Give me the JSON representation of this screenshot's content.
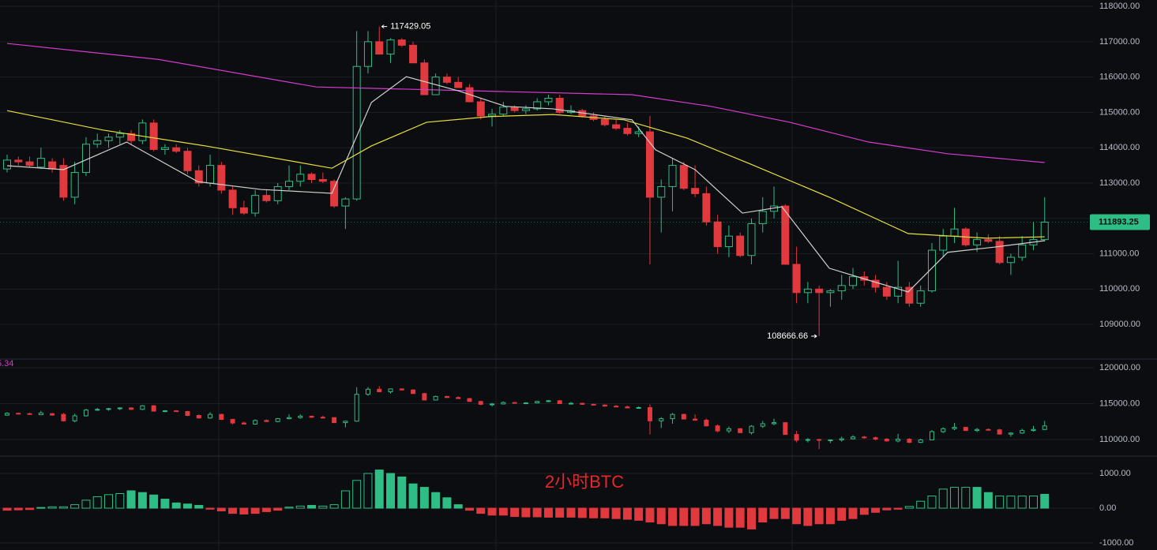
{
  "chart_data": [
    {
      "type": "candlestick",
      "ylim": [
        108020,
        118180
      ],
      "yticks": [
        {
          "value": 118000,
          "label": "118000.00"
        },
        {
          "value": 117000,
          "label": "117000.00"
        },
        {
          "value": 116000,
          "label": "116000.00"
        },
        {
          "value": 115000,
          "label": "115000.00"
        },
        {
          "value": 114000,
          "label": "114000.00"
        },
        {
          "value": 113000,
          "label": "113000.00"
        },
        {
          "value": 112000,
          "label": "112000.00"
        },
        {
          "value": 111000,
          "label": "111000.00"
        },
        {
          "value": 110000,
          "label": "110000.00"
        },
        {
          "value": 109000,
          "label": "109000.00"
        }
      ],
      "up_color": "#2ebd85",
      "down_color": "#e0393e",
      "high_annotation": 117429.05,
      "low_annotation": 108666.66,
      "last_price": 111893.25,
      "candles": [
        [
          113400,
          113800,
          113300,
          113650
        ],
        [
          113650,
          113750,
          113500,
          113600
        ],
        [
          113600,
          113750,
          113450,
          113500
        ],
        [
          113450,
          114000,
          113400,
          113700
        ],
        [
          113600,
          113700,
          113300,
          113400
        ],
        [
          113500,
          113700,
          112500,
          112600
        ],
        [
          112600,
          113600,
          112400,
          113300
        ],
        [
          113300,
          114300,
          113200,
          114100
        ],
        [
          114100,
          114400,
          114000,
          114200
        ],
        [
          114200,
          114400,
          114000,
          114300
        ],
        [
          114300,
          114500,
          114100,
          114400
        ],
        [
          114400,
          114500,
          114100,
          114200
        ],
        [
          114200,
          114800,
          114100,
          114700
        ],
        [
          114700,
          114800,
          113900,
          113950
        ],
        [
          113950,
          114100,
          113800,
          114000
        ],
        [
          114000,
          114100,
          113850,
          113900
        ],
        [
          113900,
          114000,
          113250,
          113350
        ],
        [
          113350,
          113500,
          112900,
          113000
        ],
        [
          113000,
          113800,
          112900,
          113500
        ],
        [
          113500,
          113600,
          112700,
          112800
        ],
        [
          112800,
          112900,
          112100,
          112300
        ],
        [
          112300,
          112500,
          112100,
          112150
        ],
        [
          112150,
          112800,
          112050,
          112650
        ],
        [
          112650,
          112800,
          112450,
          112500
        ],
        [
          112500,
          113000,
          112400,
          112900
        ],
        [
          112900,
          113500,
          112800,
          113050
        ],
        [
          113050,
          113500,
          112900,
          113250
        ],
        [
          113250,
          113300,
          113000,
          113100
        ],
        [
          113100,
          113300,
          113000,
          113050
        ],
        [
          113050,
          113100,
          112300,
          112350
        ],
        [
          112350,
          112600,
          111700,
          112550
        ],
        [
          112550,
          117300,
          112500,
          116300
        ],
        [
          116300,
          117300,
          116100,
          117000
        ],
        [
          117000,
          117429.05,
          116700,
          116650
        ],
        [
          116650,
          117100,
          116400,
          117050
        ],
        [
          117050,
          117100,
          116850,
          116900
        ],
        [
          116900,
          117000,
          116400,
          116400
        ],
        [
          116400,
          116500,
          115500,
          115500
        ],
        [
          115500,
          116100,
          115500,
          116000
        ],
        [
          116000,
          116100,
          115800,
          115850
        ],
        [
          115850,
          116000,
          115700,
          115700
        ],
        [
          115700,
          115800,
          115300,
          115300
        ],
        [
          115300,
          115400,
          114800,
          114900
        ],
        [
          114900,
          115100,
          114600,
          114950
        ],
        [
          114950,
          115300,
          114900,
          115150
        ],
        [
          115150,
          115200,
          115000,
          115050
        ],
        [
          115050,
          115200,
          114950,
          115100
        ],
        [
          115100,
          115400,
          115050,
          115300
        ],
        [
          115300,
          115500,
          115200,
          115400
        ],
        [
          115400,
          115500,
          114950,
          115000
        ],
        [
          115000,
          115200,
          114950,
          115050
        ],
        [
          115050,
          115100,
          114850,
          114900
        ],
        [
          114900,
          115000,
          114750,
          114800
        ],
        [
          114800,
          114900,
          114600,
          114650
        ],
        [
          114650,
          114800,
          114500,
          114550
        ],
        [
          114550,
          114700,
          114350,
          114400
        ],
        [
          114400,
          114600,
          114300,
          114450
        ],
        [
          114450,
          114900,
          110700,
          112600
        ],
        [
          112600,
          113100,
          111600,
          112900
        ],
        [
          112900,
          113700,
          112200,
          113500
        ],
        [
          113500,
          113600,
          112800,
          112850
        ],
        [
          112850,
          113500,
          112600,
          112700
        ],
        [
          112700,
          112900,
          111800,
          111900
        ],
        [
          111900,
          112100,
          111000,
          111200
        ],
        [
          111200,
          111800,
          110900,
          111500
        ],
        [
          111500,
          111600,
          110900,
          110950
        ],
        [
          110950,
          112000,
          110700,
          111850
        ],
        [
          111850,
          112600,
          111600,
          112200
        ],
        [
          112200,
          112900,
          112000,
          112350
        ],
        [
          112350,
          112400,
          110700,
          110700
        ],
        [
          110700,
          111200,
          109600,
          109900
        ],
        [
          109900,
          110200,
          109600,
          110000
        ],
        [
          110000,
          110100,
          108666.66,
          109900
        ],
        [
          109900,
          110000,
          109500,
          109950
        ],
        [
          109950,
          110400,
          109700,
          110100
        ],
        [
          110100,
          110600,
          110000,
          110350
        ],
        [
          110350,
          110500,
          110100,
          110250
        ],
        [
          110250,
          110400,
          109900,
          110050
        ],
        [
          110050,
          110200,
          109700,
          109800
        ],
        [
          109800,
          110800,
          109600,
          110050
        ],
        [
          110050,
          110200,
          109500,
          109600
        ],
        [
          109600,
          110100,
          109500,
          109950
        ],
        [
          109950,
          111300,
          109900,
          111100
        ],
        [
          111100,
          111700,
          110900,
          111500
        ],
        [
          111500,
          112300,
          111300,
          111700
        ],
        [
          111700,
          111750,
          111200,
          111250
        ],
        [
          111250,
          111600,
          111050,
          111400
        ],
        [
          111400,
          111550,
          111300,
          111350
        ],
        [
          111350,
          111500,
          110700,
          110750
        ],
        [
          110750,
          111000,
          110400,
          110900
        ],
        [
          110900,
          111500,
          110800,
          111250
        ],
        [
          111250,
          111900,
          111100,
          111400
        ],
        [
          111400,
          112600,
          111350,
          111893.25
        ]
      ],
      "ma": [
        {
          "color": "#e8e13a",
          "x": [
            0,
            8.5,
            17.6,
            28.8,
            32.3,
            37.2,
            42.8,
            48.4,
            54.7,
            60.3,
            65.9,
            72.9,
            79.9,
            86.9,
            92
          ],
          "values": [
            115050,
            114500,
            114050,
            113420,
            114050,
            114720,
            114880,
            114940,
            114790,
            114270,
            113540,
            112600,
            111570,
            111440,
            111480
          ]
        },
        {
          "color": "#d63bd0",
          "x": [
            0,
            13.4,
            27.4,
            41.4,
            55.4,
            62.4,
            69.4,
            76.4,
            83.4,
            92
          ],
          "values": [
            116950,
            116500,
            115720,
            115610,
            115500,
            115170,
            114720,
            114160,
            113830,
            113580
          ]
        },
        {
          "color": "#d0d0d0",
          "x": [
            0,
            5,
            10.6,
            16.9,
            22.5,
            28.8,
            32.3,
            35.4,
            40,
            44.2,
            48.4,
            55.4,
            57.5,
            61,
            65.2,
            68.7,
            72.9,
            76.4,
            79.9,
            83.4,
            87.6,
            92
          ],
          "values": [
            113490,
            113380,
            114160,
            113040,
            112820,
            112710,
            115280,
            116010,
            115610,
            115170,
            115100,
            114790,
            113940,
            113380,
            112150,
            112330,
            110590,
            110250,
            109920,
            111040,
            111190,
            111370
          ]
        }
      ]
    },
    {
      "type": "candlestick",
      "label": "5.34",
      "ylim": [
        107690,
        121210
      ],
      "yticks": [
        {
          "value": 120000,
          "label": "120000.00"
        },
        {
          "value": 115000,
          "label": "115000.00"
        },
        {
          "value": 110000,
          "label": "110000.00"
        }
      ]
    },
    {
      "type": "histogram",
      "watermark": "2小时BTC",
      "ylim": [
        -1205,
        1500
      ],
      "yticks": [
        {
          "value": 1000,
          "label": "1000.00"
        },
        {
          "value": 0,
          "label": "0.00"
        },
        {
          "value": -1000,
          "label": "-1000.00"
        }
      ],
      "values": [
        -60,
        -50,
        -40,
        20,
        40,
        40,
        100,
        230,
        330,
        390,
        420,
        500,
        450,
        380,
        260,
        150,
        120,
        80,
        -30,
        -80,
        -150,
        -170,
        -150,
        -100,
        -60,
        30,
        60,
        80,
        60,
        100,
        500,
        800,
        1000,
        1100,
        1000,
        900,
        700,
        600,
        450,
        300,
        100,
        -60,
        -150,
        -200,
        -200,
        -240,
        -250,
        -250,
        -260,
        -260,
        -260,
        -270,
        -280,
        -280,
        -300,
        -320,
        -350,
        -400,
        -450,
        -500,
        -500,
        -500,
        -450,
        -500,
        -550,
        -550,
        -600,
        -400,
        -300,
        -300,
        -450,
        -500,
        -450,
        -450,
        -350,
        -300,
        -180,
        -120,
        -50,
        -30,
        50,
        200,
        350,
        550,
        600,
        600,
        600,
        450,
        350,
        350,
        350,
        350,
        400
      ]
    }
  ]
}
